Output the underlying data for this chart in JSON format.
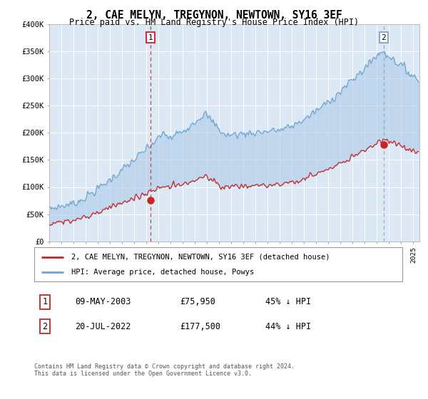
{
  "title": "2, CAE MELYN, TREGYNON, NEWTOWN, SY16 3EF",
  "subtitle": "Price paid vs. HM Land Registry's House Price Index (HPI)",
  "legend_line1": "2, CAE MELYN, TREGYNON, NEWTOWN, SY16 3EF (detached house)",
  "legend_line2": "HPI: Average price, detached house, Powys",
  "sale1_label": "1",
  "sale1_date": "09-MAY-2003",
  "sale1_price": "£75,950",
  "sale1_hpi": "45% ↓ HPI",
  "sale1_year": 2003.36,
  "sale1_value": 75950,
  "sale2_label": "2",
  "sale2_date": "20-JUL-2022",
  "sale2_price": "£177,500",
  "sale2_hpi": "44% ↓ HPI",
  "sale2_year": 2022.55,
  "sale2_value": 177500,
  "background_color": "#dce9f5",
  "hpi_line_color": "#6ea6d0",
  "hpi_fill_color": "#aac8e8",
  "property_line_color": "#cc2222",
  "sale_dot_color": "#cc2222",
  "sale1_vline_color": "#cc3333",
  "sale2_vline_color": "#88aacc",
  "footnote": "Contains HM Land Registry data © Crown copyright and database right 2024.\nThis data is licensed under the Open Government Licence v3.0.",
  "ylim": [
    0,
    400000
  ],
  "xlim_start": 1995.0,
  "xlim_end": 2025.5,
  "fig_width": 6.0,
  "fig_height": 5.6,
  "dpi": 100
}
